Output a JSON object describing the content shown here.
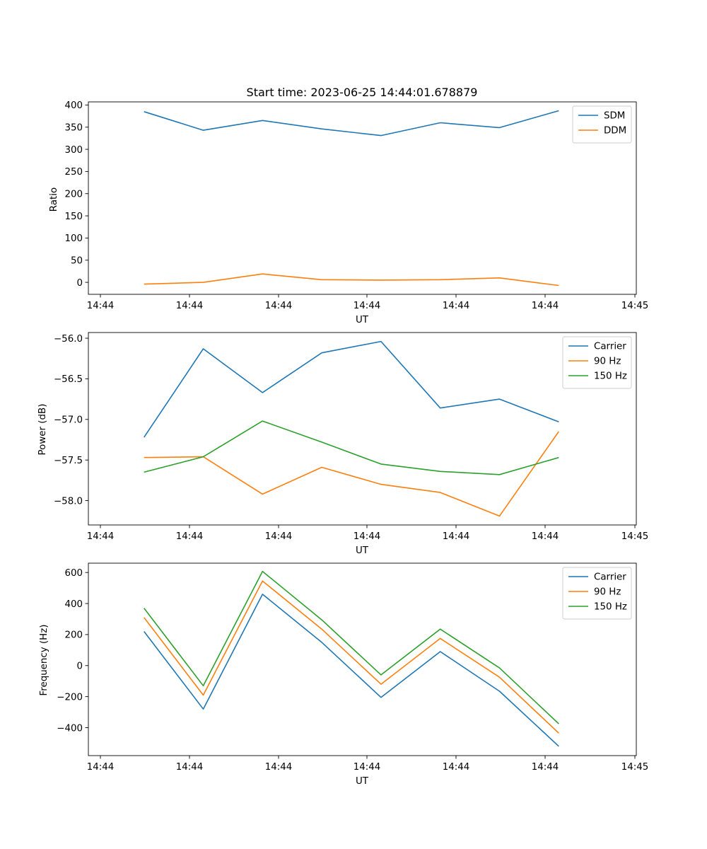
{
  "chart_data": [
    {
      "type": "line",
      "title": "Start time: 2023-06-25 14:44:01.678879",
      "xlabel": "UT",
      "ylabel": "Ratio",
      "x_tick_labels": [
        "14:44",
        "14:44",
        "14:44",
        "14:44",
        "14:44",
        "14:44",
        "14:45"
      ],
      "y_ticks": [
        0,
        50,
        100,
        150,
        200,
        250,
        300,
        350,
        400
      ],
      "y_tick_labels": [
        "0",
        "50",
        "100",
        "150",
        "200",
        "250",
        "300",
        "350",
        "400"
      ],
      "ylim": [
        -27,
        407
      ],
      "grid": false,
      "legend_position": "top-right",
      "series": [
        {
          "name": "SDM",
          "color": "#1f77b4",
          "values": [
            385,
            343,
            365,
            346,
            331,
            360,
            349,
            387
          ]
        },
        {
          "name": "DDM",
          "color": "#ff7f0e",
          "values": [
            -4,
            0,
            19,
            6,
            5,
            6,
            10,
            -7
          ]
        }
      ]
    },
    {
      "type": "line",
      "title": "",
      "xlabel": "UT",
      "ylabel": "Power (dB)",
      "x_tick_labels": [
        "14:44",
        "14:44",
        "14:44",
        "14:44",
        "14:44",
        "14:44",
        "14:45"
      ],
      "y_ticks": [
        -58.0,
        -57.5,
        -57.0,
        -56.5,
        -56.0
      ],
      "y_tick_labels": [
        "−58.0",
        "−57.5",
        "−57.0",
        "−56.5",
        "−56.0"
      ],
      "ylim": [
        -58.3,
        -55.93
      ],
      "grid": false,
      "legend_position": "top-right",
      "series": [
        {
          "name": "Carrier",
          "color": "#1f77b4",
          "values": [
            -57.22,
            -56.13,
            -56.67,
            -56.18,
            -56.04,
            -56.86,
            -56.75,
            -57.03
          ]
        },
        {
          "name": "90 Hz",
          "color": "#ff7f0e",
          "values": [
            -57.47,
            -57.46,
            -57.92,
            -57.59,
            -57.8,
            -57.9,
            -58.19,
            -57.15
          ]
        },
        {
          "name": "150 Hz",
          "color": "#2ca02c",
          "values": [
            -57.65,
            -57.46,
            -57.02,
            -57.28,
            -57.55,
            -57.64,
            -57.68,
            -57.47
          ]
        }
      ]
    },
    {
      "type": "line",
      "title": "",
      "xlabel": "UT",
      "ylabel": "Frequency (Hz)",
      "x_tick_labels": [
        "14:44",
        "14:44",
        "14:44",
        "14:44",
        "14:44",
        "14:44",
        "14:45"
      ],
      "y_ticks": [
        -400,
        -200,
        0,
        200,
        400,
        600
      ],
      "y_tick_labels": [
        "−400",
        "−200",
        "0",
        "200",
        "400",
        "600"
      ],
      "ylim": [
        -580,
        660
      ],
      "grid": false,
      "legend_position": "top-right",
      "series": [
        {
          "name": "Carrier",
          "color": "#1f77b4",
          "values": [
            220,
            -280,
            460,
            150,
            -205,
            90,
            -165,
            -520
          ]
        },
        {
          "name": "90 Hz",
          "color": "#ff7f0e",
          "values": [
            310,
            -190,
            545,
            235,
            -120,
            175,
            -75,
            -435
          ]
        },
        {
          "name": "150 Hz",
          "color": "#2ca02c",
          "values": [
            370,
            -130,
            607,
            295,
            -60,
            235,
            -15,
            -375
          ]
        }
      ]
    }
  ]
}
